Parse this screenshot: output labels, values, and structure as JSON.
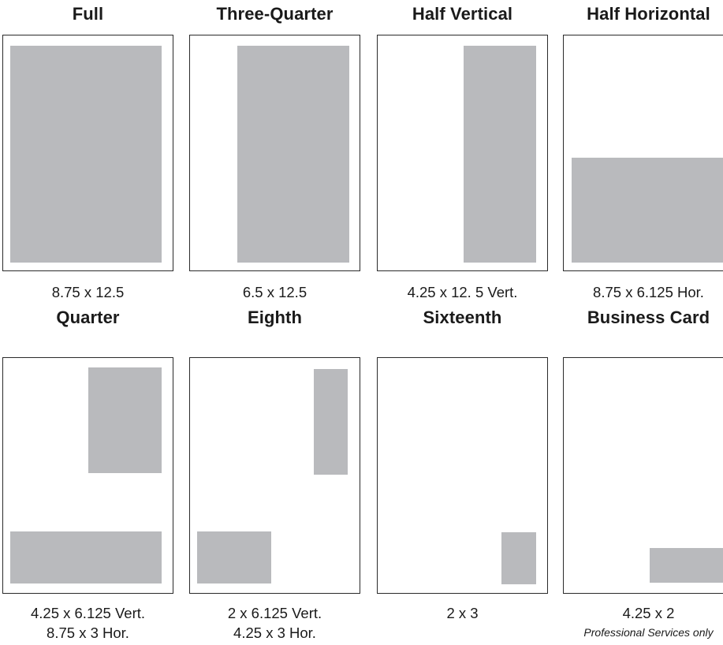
{
  "sizes": {
    "full": {
      "title": "Full",
      "caption": "8.75 x 12.5"
    },
    "three_quarter": {
      "title": "Three-Quarter",
      "caption": "6.5 x 12.5"
    },
    "half_vertical": {
      "title": "Half Vertical",
      "caption": "4.25 x 12. 5 Vert."
    },
    "half_horizontal": {
      "title": "Half Horizontal",
      "caption": "8.75 x 6.125 Hor."
    },
    "quarter": {
      "title": "Quarter",
      "caption_line1": "4.25 x 6.125 Vert.",
      "caption_line2": "8.75 x 3 Hor."
    },
    "eighth": {
      "title": "Eighth",
      "caption_line1": "2 x 6.125 Vert.",
      "caption_line2": "4.25 x 3 Hor."
    },
    "sixteenth": {
      "title": "Sixteenth",
      "caption": "2 x 3"
    },
    "business_card": {
      "title": "Business Card",
      "caption": "4.25 x 2",
      "note": "Professional Services only"
    }
  },
  "colors": {
    "ad_fill": "#b9babd",
    "page_border": "#2a2a2a"
  }
}
